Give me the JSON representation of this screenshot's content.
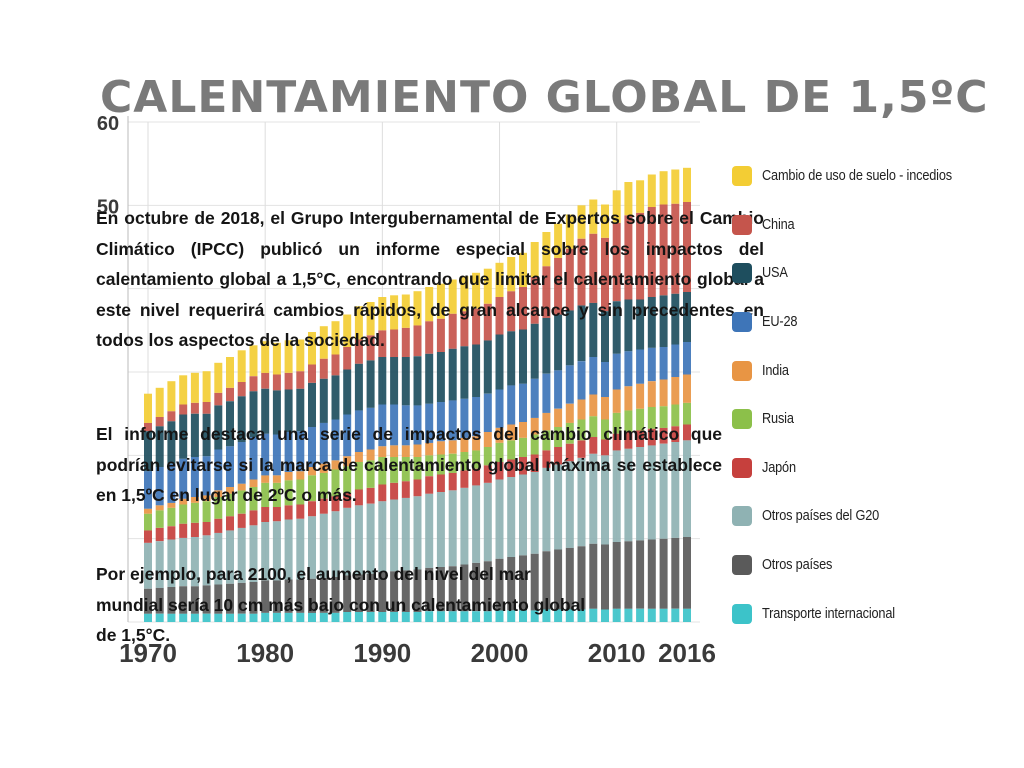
{
  "slide": {
    "title": "CALENTAMIENTO GLOBAL DE 1,5ºC",
    "paragraphs": [
      "En octubre de 2018, el Grupo Intergubernamental de Expertos sobre el Cambio Climático (IPCC) publicó un informe especial sobre los impactos del calentamiento global a 1,5°C, encontrando que limitar el calentamiento global a este nivel requerirá cambios rápidos, de gran alcance y sin precedentes en todos los aspectos de la sociedad.",
      "El informe destaca una serie de impactos del cambio climático que podrían evitarse si la marca de calentamiento global máxima se establece en 1,5ºC en lugar de 2ºC o más.",
      "Por ejemplo, para 2100, el aumento del nivel del mar mundial sería 10 cm más bajo con un calentamiento global de 1,5°C."
    ]
  },
  "chart_data": {
    "type": "bar",
    "stacked": true,
    "x_tick_labels": [
      "1970",
      "1980",
      "1990",
      "2000",
      "2010",
      "2016"
    ],
    "y_tick_labels": [
      "50",
      "60"
    ],
    "x_range": [
      1970,
      2016
    ],
    "ylim": [
      0,
      60
    ],
    "grid": true,
    "legend_position": "right",
    "categories": [
      1970,
      1971,
      1972,
      1973,
      1974,
      1975,
      1976,
      1977,
      1978,
      1979,
      1980,
      1981,
      1982,
      1983,
      1984,
      1985,
      1986,
      1987,
      1988,
      1989,
      1990,
      1991,
      1992,
      1993,
      1994,
      1995,
      1996,
      1997,
      1998,
      1999,
      2000,
      2001,
      2002,
      2003,
      2004,
      2005,
      2006,
      2007,
      2008,
      2009,
      2010,
      2011,
      2012,
      2013,
      2014,
      2015,
      2016
    ],
    "series": [
      {
        "name": "Transporte internacional",
        "color": "#3cc3c9",
        "values": [
          1,
          1,
          1,
          1,
          1,
          1,
          1,
          1,
          1,
          1,
          1.1,
          1.1,
          1.1,
          1.1,
          1.1,
          1.1,
          1.1,
          1.2,
          1.2,
          1.2,
          1.2,
          1.2,
          1.2,
          1.2,
          1.3,
          1.3,
          1.3,
          1.3,
          1.3,
          1.3,
          1.4,
          1.4,
          1.4,
          1.4,
          1.5,
          1.5,
          1.5,
          1.5,
          1.6,
          1.5,
          1.6,
          1.6,
          1.6,
          1.6,
          1.6,
          1.6,
          1.6
        ]
      },
      {
        "name": "Otros países",
        "color": "#5a5a5a",
        "values": [
          3,
          3.1,
          3.2,
          3.3,
          3.3,
          3.4,
          3.5,
          3.6,
          3.7,
          3.8,
          3.9,
          3.9,
          4,
          4,
          4.1,
          4.2,
          4.3,
          4.4,
          4.5,
          4.6,
          4.8,
          4.9,
          5,
          5.1,
          5.2,
          5.3,
          5.4,
          5.6,
          5.8,
          6,
          6.2,
          6.4,
          6.6,
          6.8,
          7,
          7.2,
          7.4,
          7.6,
          7.8,
          7.8,
          8,
          8.1,
          8.2,
          8.3,
          8.4,
          8.5,
          8.6
        ]
      },
      {
        "name": "Otros países del G20",
        "color": "#8fb2b3",
        "values": [
          5.5,
          5.6,
          5.7,
          5.8,
          5.9,
          6,
          6.2,
          6.4,
          6.6,
          6.8,
          7,
          7.1,
          7.2,
          7.3,
          7.5,
          7.7,
          7.9,
          8.1,
          8.3,
          8.4,
          8.5,
          8.6,
          8.7,
          8.8,
          8.9,
          9,
          9.1,
          9.2,
          9.3,
          9.4,
          9.5,
          9.6,
          9.7,
          9.8,
          10,
          10.2,
          10.4,
          10.6,
          10.8,
          10.7,
          11,
          11.1,
          11.2,
          11.3,
          11.4,
          11.5,
          11.6
        ]
      },
      {
        "name": "Japón",
        "color": "#c6403d",
        "values": [
          1.5,
          1.6,
          1.6,
          1.7,
          1.7,
          1.6,
          1.7,
          1.7,
          1.7,
          1.8,
          1.8,
          1.7,
          1.7,
          1.7,
          1.8,
          1.8,
          1.8,
          1.8,
          1.9,
          1.9,
          2,
          2,
          2,
          2,
          2.1,
          2.1,
          2.1,
          2.1,
          2,
          2.1,
          2.1,
          2.1,
          2.1,
          2.1,
          2.1,
          2.1,
          2.1,
          2.1,
          2,
          1.9,
          2,
          2,
          2,
          2,
          1.9,
          1.9,
          1.9
        ]
      },
      {
        "name": "Rusia",
        "color": "#8cc04a",
        "values": [
          2,
          2.1,
          2.2,
          2.3,
          2.4,
          2.5,
          2.6,
          2.7,
          2.8,
          2.8,
          2.9,
          2.9,
          3,
          3,
          3.1,
          3.1,
          3.2,
          3.2,
          3.3,
          3.3,
          3.3,
          3.1,
          2.9,
          2.7,
          2.5,
          2.4,
          2.3,
          2.2,
          2.2,
          2.2,
          2.3,
          2.3,
          2.3,
          2.4,
          2.4,
          2.4,
          2.5,
          2.5,
          2.5,
          2.4,
          2.5,
          2.6,
          2.6,
          2.6,
          2.6,
          2.6,
          2.6
        ]
      },
      {
        "name": "India",
        "color": "#e89544",
        "values": [
          0.6,
          0.6,
          0.6,
          0.7,
          0.7,
          0.7,
          0.8,
          0.8,
          0.8,
          0.9,
          0.9,
          0.9,
          1,
          1,
          1,
          1.1,
          1.1,
          1.2,
          1.2,
          1.3,
          1.3,
          1.4,
          1.4,
          1.5,
          1.5,
          1.6,
          1.6,
          1.7,
          1.7,
          1.8,
          1.8,
          1.9,
          1.9,
          2,
          2.1,
          2.2,
          2.3,
          2.4,
          2.6,
          2.7,
          2.8,
          2.9,
          3,
          3.1,
          3.2,
          3.3,
          3.4
        ]
      },
      {
        "name": "EU-28",
        "color": "#3e75b8",
        "values": [
          4.5,
          4.6,
          4.7,
          4.8,
          4.8,
          4.7,
          4.9,
          4.9,
          5,
          5.1,
          5,
          4.9,
          4.8,
          4.8,
          4.8,
          4.9,
          4.9,
          5,
          5,
          5,
          5,
          4.9,
          4.8,
          4.7,
          4.7,
          4.7,
          4.8,
          4.7,
          4.7,
          4.6,
          4.6,
          4.7,
          4.6,
          4.7,
          4.7,
          4.6,
          4.6,
          4.6,
          4.5,
          4.2,
          4.3,
          4.2,
          4.1,
          4,
          3.9,
          3.9,
          3.9
        ]
      },
      {
        "name": "USA",
        "color": "#1e4e5e",
        "values": [
          4.8,
          4.9,
          5.1,
          5.3,
          5.2,
          5.1,
          5.3,
          5.4,
          5.5,
          5.5,
          5.4,
          5.3,
          5.1,
          5.1,
          5.3,
          5.3,
          5.3,
          5.4,
          5.6,
          5.7,
          5.7,
          5.7,
          5.8,
          5.9,
          6,
          6,
          6.2,
          6.3,
          6.3,
          6.4,
          6.6,
          6.5,
          6.5,
          6.6,
          6.7,
          6.7,
          6.6,
          6.7,
          6.5,
          6.1,
          6.3,
          6.2,
          6,
          6.1,
          6.2,
          6.1,
          6
        ]
      },
      {
        "name": "China",
        "color": "#c5554c",
        "values": [
          1,
          1.1,
          1.2,
          1.2,
          1.3,
          1.4,
          1.5,
          1.6,
          1.7,
          1.8,
          1.9,
          1.9,
          2,
          2.1,
          2.2,
          2.4,
          2.5,
          2.7,
          2.9,
          3,
          3.2,
          3.3,
          3.5,
          3.7,
          3.9,
          4,
          4.2,
          4.2,
          4.3,
          4.4,
          4.5,
          4.8,
          5.1,
          5.6,
          6.2,
          6.8,
          7.4,
          8,
          8.3,
          8.8,
          9.4,
          10.1,
          10.4,
          10.8,
          10.9,
          10.8,
          10.8
        ]
      },
      {
        "name": "Cambio de uso de suelo - incedios",
        "color": "#f3cd34",
        "values": [
          3.5,
          3.5,
          3.6,
          3.5,
          3.6,
          3.7,
          3.6,
          3.7,
          3.8,
          3.7,
          3.8,
          3.8,
          3.9,
          3.8,
          3.9,
          3.9,
          4,
          3.9,
          4,
          4,
          4,
          4.1,
          4,
          4.1,
          4.1,
          4.2,
          4.1,
          4.2,
          4.3,
          4.2,
          4.1,
          4.1,
          4.1,
          4.2,
          4.1,
          4.1,
          4.1,
          4,
          4.1,
          4,
          3.9,
          4,
          3.9,
          3.9,
          4,
          4.1,
          4.1
        ]
      }
    ]
  }
}
